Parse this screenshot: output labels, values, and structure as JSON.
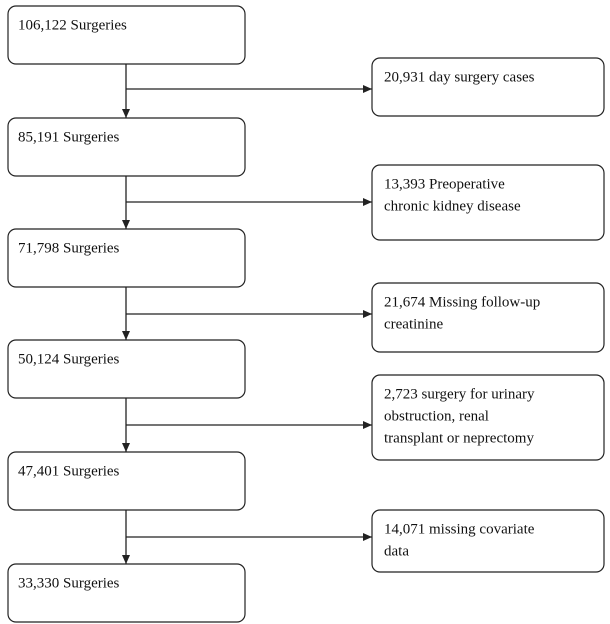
{
  "nodes": [
    {
      "label": "106,122 Surgeries"
    },
    {
      "label": "85,191 Surgeries"
    },
    {
      "label": "71,798 Surgeries"
    },
    {
      "label": "50,124 Surgeries"
    },
    {
      "label": "47,401 Surgeries"
    },
    {
      "label": "33,330 Surgeries"
    }
  ],
  "exclusions": [
    {
      "lines": [
        "20,931 day surgery cases"
      ]
    },
    {
      "lines": [
        "13,393 Preoperative",
        "chronic kidney disease"
      ]
    },
    {
      "lines": [
        "21,674 Missing follow-up",
        "creatinine"
      ]
    },
    {
      "lines": [
        "2,723 surgery for urinary",
        "obstruction, renal",
        "transplant or neprectomy"
      ]
    },
    {
      "lines": [
        "14,071 missing covariate",
        "data"
      ]
    }
  ]
}
